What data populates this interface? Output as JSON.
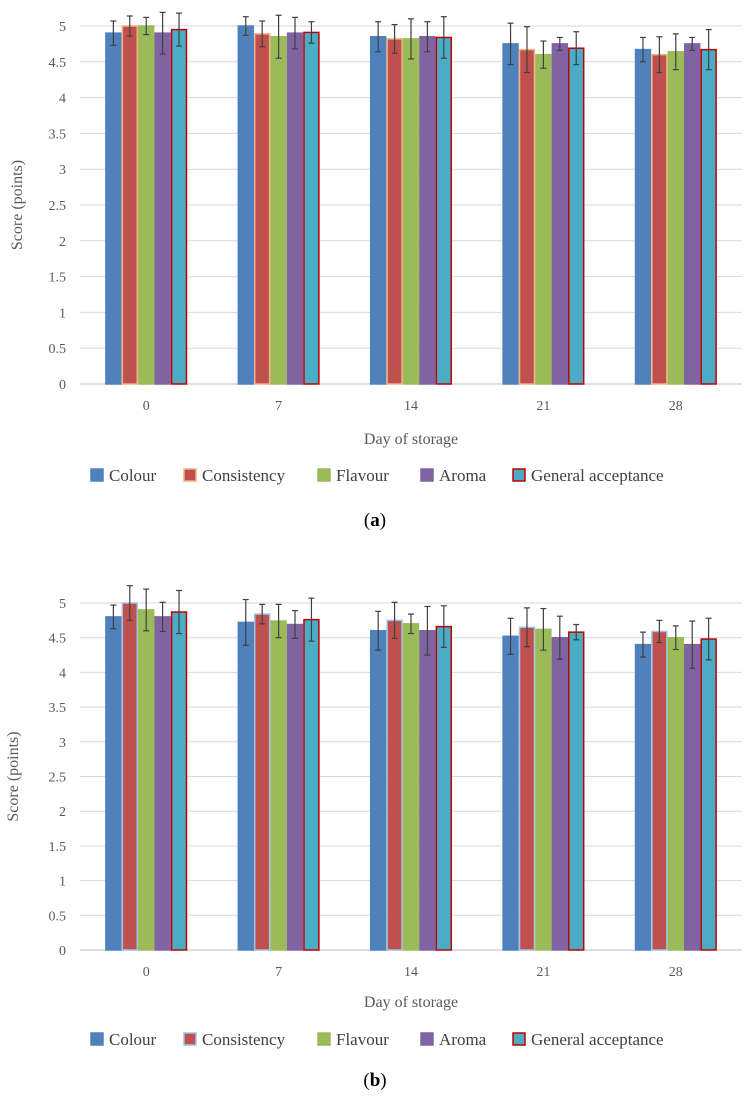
{
  "chart_data": [
    {
      "type": "bar",
      "panel_label": "a",
      "categories": [
        "0",
        "7",
        "14",
        "21",
        "28"
      ],
      "xlabel": "Day of storage",
      "ylabel": "Score (points)",
      "ylim": [
        0,
        5
      ],
      "yticks": [
        "0",
        "0.5",
        "1",
        "1.5",
        "2",
        "2.5",
        "3",
        "3.5",
        "4",
        "4.5",
        "5"
      ],
      "grid": true,
      "legend_position": "bottom",
      "series": [
        {
          "name": "Colour",
          "color": "#4f81bd",
          "edge": "#4f81bd",
          "values": [
            4.9,
            5.0,
            4.85,
            4.75,
            4.67
          ],
          "errors": [
            0.17,
            0.13,
            0.21,
            0.29,
            0.17
          ]
        },
        {
          "name": "Consistency",
          "color": "#c0504d",
          "edge": "#f4b183",
          "values": [
            5.0,
            4.89,
            4.82,
            4.67,
            4.6
          ],
          "errors": [
            0.14,
            0.18,
            0.2,
            0.32,
            0.25
          ]
        },
        {
          "name": "Flavour",
          "color": "#9bbb59",
          "edge": "#9bbb59",
          "values": [
            5.0,
            4.85,
            4.82,
            4.6,
            4.64
          ],
          "errors": [
            0.12,
            0.3,
            0.28,
            0.19,
            0.25
          ]
        },
        {
          "name": "Aroma",
          "color": "#8064a2",
          "edge": "#8064a2",
          "values": [
            4.9,
            4.9,
            4.85,
            4.75,
            4.75
          ],
          "errors": [
            0.29,
            0.22,
            0.21,
            0.09,
            0.09
          ]
        },
        {
          "name": "General acceptance",
          "color": "#4bacc6",
          "edge": "#c00000",
          "values": [
            4.95,
            4.91,
            4.84,
            4.69,
            4.67
          ],
          "errors": [
            0.23,
            0.15,
            0.29,
            0.23,
            0.28
          ]
        }
      ]
    },
    {
      "type": "bar",
      "panel_label": "b",
      "categories": [
        "0",
        "7",
        "14",
        "21",
        "28"
      ],
      "xlabel": "Day of storage",
      "ylabel": "Score (points)",
      "ylim": [
        0,
        5
      ],
      "yticks": [
        "0",
        "0.5",
        "1",
        "1.5",
        "2",
        "2.5",
        "3",
        "3.5",
        "4",
        "4.5",
        "5"
      ],
      "grid": true,
      "legend_position": "bottom",
      "series": [
        {
          "name": "Colour",
          "color": "#4f81bd",
          "edge": "#4f81bd",
          "values": [
            4.8,
            4.72,
            4.6,
            4.52,
            4.4
          ],
          "errors": [
            0.17,
            0.33,
            0.28,
            0.26,
            0.18
          ]
        },
        {
          "name": "Consistency",
          "color": "#c0504d",
          "edge": "#9dc3e6",
          "values": [
            5.0,
            4.84,
            4.75,
            4.65,
            4.59
          ],
          "errors": [
            0.25,
            0.14,
            0.26,
            0.28,
            0.16
          ]
        },
        {
          "name": "Flavour",
          "color": "#9bbb59",
          "edge": "#9bbb59",
          "values": [
            4.9,
            4.74,
            4.7,
            4.62,
            4.5
          ],
          "errors": [
            0.3,
            0.24,
            0.14,
            0.3,
            0.17
          ]
        },
        {
          "name": "Aroma",
          "color": "#8064a2",
          "edge": "#8064a2",
          "values": [
            4.8,
            4.69,
            4.6,
            4.5,
            4.4
          ],
          "errors": [
            0.21,
            0.2,
            0.35,
            0.31,
            0.34
          ]
        },
        {
          "name": "General acceptance",
          "color": "#4bacc6",
          "edge": "#c00000",
          "values": [
            4.87,
            4.76,
            4.66,
            4.58,
            4.48
          ],
          "errors": [
            0.31,
            0.31,
            0.3,
            0.11,
            0.3
          ]
        }
      ]
    }
  ]
}
